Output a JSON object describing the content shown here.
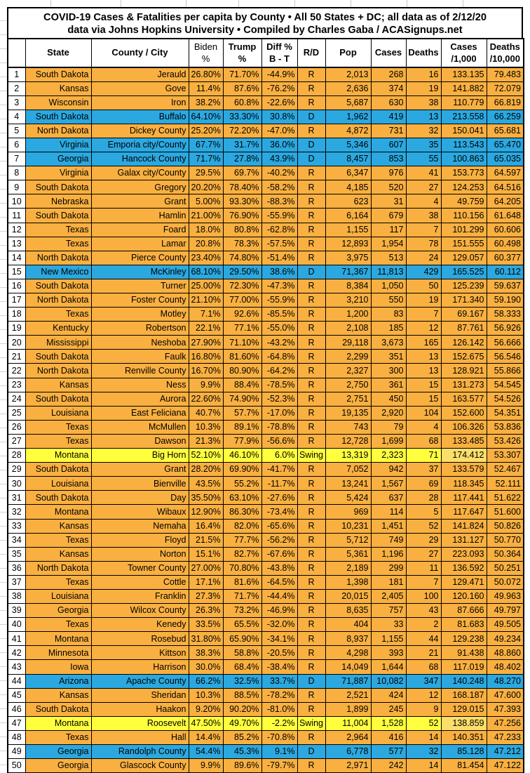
{
  "title": {
    "line1": "COVID-19 Cases & Fatalities per capita by County • All 50 States + DC; all data as of 2/12/20",
    "line2": "data via Johns Hopkins University • Compiled by Charles Gaba / ACASignups.net"
  },
  "colors": {
    "republican_row": "#F9B041",
    "democrat_row": "#2BA8E0",
    "swing_row": "#FFFF3D",
    "swing_cases_cell": "#FCDE6A",
    "border": "#000000",
    "text": "#000000"
  },
  "chart_data": {
    "type": "table",
    "title": "COVID-19 Cases & Fatalities per capita by County",
    "columns": [
      "",
      "State",
      "County / City",
      "Biden\n%",
      "Trump\n%",
      "Diff %\nB - T",
      "R/D",
      "Pop",
      "Cases",
      "Deaths",
      "Cases\n/1,000",
      "Deaths\n/10,000"
    ],
    "rows": [
      {
        "rank": "1",
        "state": "South Dakota",
        "county": "Jerauld",
        "biden": "26.80%",
        "trump": "71.70%",
        "diff": "-44.9%",
        "rd": "R",
        "pop": "2,013",
        "cases": "268",
        "deaths": "16",
        "cases_per_1000": "133.135",
        "deaths_per_10000": "79.483"
      },
      {
        "rank": "2",
        "state": "Kansas",
        "county": "Gove",
        "biden": "11.4%",
        "trump": "87.6%",
        "diff": "-76.2%",
        "rd": "R",
        "pop": "2,636",
        "cases": "374",
        "deaths": "19",
        "cases_per_1000": "141.882",
        "deaths_per_10000": "72.079"
      },
      {
        "rank": "3",
        "state": "Wisconsin",
        "county": "Iron",
        "biden": "38.2%",
        "trump": "60.8%",
        "diff": "-22.6%",
        "rd": "R",
        "pop": "5,687",
        "cases": "630",
        "deaths": "38",
        "cases_per_1000": "110.779",
        "deaths_per_10000": "66.819"
      },
      {
        "rank": "4",
        "state": "South Dakota",
        "county": "Buffalo",
        "biden": "64.10%",
        "trump": "33.30%",
        "diff": "30.8%",
        "rd": "D",
        "pop": "1,962",
        "cases": "419",
        "deaths": "13",
        "cases_per_1000": "213.558",
        "deaths_per_10000": "66.259"
      },
      {
        "rank": "5",
        "state": "North Dakota",
        "county": "Dickey County",
        "biden": "25.20%",
        "trump": "72.20%",
        "diff": "-47.0%",
        "rd": "R",
        "pop": "4,872",
        "cases": "731",
        "deaths": "32",
        "cases_per_1000": "150.041",
        "deaths_per_10000": "65.681"
      },
      {
        "rank": "6",
        "state": "Virginia",
        "county": "Emporia city/County",
        "biden": "67.7%",
        "trump": "31.7%",
        "diff": "36.0%",
        "rd": "D",
        "pop": "5,346",
        "cases": "607",
        "deaths": "35",
        "cases_per_1000": "113.543",
        "deaths_per_10000": "65.470"
      },
      {
        "rank": "7",
        "state": "Georgia",
        "county": "Hancock County",
        "biden": "71.7%",
        "trump": "27.8%",
        "diff": "43.9%",
        "rd": "D",
        "pop": "8,457",
        "cases": "853",
        "deaths": "55",
        "cases_per_1000": "100.863",
        "deaths_per_10000": "65.035"
      },
      {
        "rank": "8",
        "state": "Virginia",
        "county": "Galax city/County",
        "biden": "29.5%",
        "trump": "69.7%",
        "diff": "-40.2%",
        "rd": "R",
        "pop": "6,347",
        "cases": "976",
        "deaths": "41",
        "cases_per_1000": "153.773",
        "deaths_per_10000": "64.597"
      },
      {
        "rank": "9",
        "state": "South Dakota",
        "county": "Gregory",
        "biden": "20.20%",
        "trump": "78.40%",
        "diff": "-58.2%",
        "rd": "R",
        "pop": "4,185",
        "cases": "520",
        "deaths": "27",
        "cases_per_1000": "124.253",
        "deaths_per_10000": "64.516"
      },
      {
        "rank": "10",
        "state": "Nebraska",
        "county": "Grant",
        "biden": "5.00%",
        "trump": "93.30%",
        "diff": "-88.3%",
        "rd": "R",
        "pop": "623",
        "cases": "31",
        "deaths": "4",
        "cases_per_1000": "49.759",
        "deaths_per_10000": "64.205"
      },
      {
        "rank": "11",
        "state": "South Dakota",
        "county": "Hamlin",
        "biden": "21.00%",
        "trump": "76.90%",
        "diff": "-55.9%",
        "rd": "R",
        "pop": "6,164",
        "cases": "679",
        "deaths": "38",
        "cases_per_1000": "110.156",
        "deaths_per_10000": "61.648"
      },
      {
        "rank": "12",
        "state": "Texas",
        "county": "Foard",
        "biden": "18.0%",
        "trump": "80.8%",
        "diff": "-62.8%",
        "rd": "R",
        "pop": "1,155",
        "cases": "117",
        "deaths": "7",
        "cases_per_1000": "101.299",
        "deaths_per_10000": "60.606"
      },
      {
        "rank": "13",
        "state": "Texas",
        "county": "Lamar",
        "biden": "20.8%",
        "trump": "78.3%",
        "diff": "-57.5%",
        "rd": "R",
        "pop": "12,893",
        "cases": "1,954",
        "deaths": "78",
        "cases_per_1000": "151.555",
        "deaths_per_10000": "60.498"
      },
      {
        "rank": "14",
        "state": "North Dakota",
        "county": "Pierce County",
        "biden": "23.40%",
        "trump": "74.80%",
        "diff": "-51.4%",
        "rd": "R",
        "pop": "3,975",
        "cases": "513",
        "deaths": "24",
        "cases_per_1000": "129.057",
        "deaths_per_10000": "60.377"
      },
      {
        "rank": "15",
        "state": "New Mexico",
        "county": "McKinley",
        "biden": "68.10%",
        "trump": "29.50%",
        "diff": "38.6%",
        "rd": "D",
        "pop": "71,367",
        "cases": "11,813",
        "deaths": "429",
        "cases_per_1000": "165.525",
        "deaths_per_10000": "60.112"
      },
      {
        "rank": "16",
        "state": "South Dakota",
        "county": "Turner",
        "biden": "25.00%",
        "trump": "72.30%",
        "diff": "-47.3%",
        "rd": "R",
        "pop": "8,384",
        "cases": "1,050",
        "deaths": "50",
        "cases_per_1000": "125.239",
        "deaths_per_10000": "59.637"
      },
      {
        "rank": "17",
        "state": "North Dakota",
        "county": "Foster County",
        "biden": "21.10%",
        "trump": "77.00%",
        "diff": "-55.9%",
        "rd": "R",
        "pop": "3,210",
        "cases": "550",
        "deaths": "19",
        "cases_per_1000": "171.340",
        "deaths_per_10000": "59.190"
      },
      {
        "rank": "18",
        "state": "Texas",
        "county": "Motley",
        "biden": "7.1%",
        "trump": "92.6%",
        "diff": "-85.5%",
        "rd": "R",
        "pop": "1,200",
        "cases": "83",
        "deaths": "7",
        "cases_per_1000": "69.167",
        "deaths_per_10000": "58.333"
      },
      {
        "rank": "19",
        "state": "Kentucky",
        "county": "Robertson",
        "biden": "22.1%",
        "trump": "77.1%",
        "diff": "-55.0%",
        "rd": "R",
        "pop": "2,108",
        "cases": "185",
        "deaths": "12",
        "cases_per_1000": "87.761",
        "deaths_per_10000": "56.926"
      },
      {
        "rank": "20",
        "state": "Mississippi",
        "county": "Neshoba",
        "biden": "27.90%",
        "trump": "71.10%",
        "diff": "-43.2%",
        "rd": "R",
        "pop": "29,118",
        "cases": "3,673",
        "deaths": "165",
        "cases_per_1000": "126.142",
        "deaths_per_10000": "56.666"
      },
      {
        "rank": "21",
        "state": "South Dakota",
        "county": "Faulk",
        "biden": "16.80%",
        "trump": "81.60%",
        "diff": "-64.8%",
        "rd": "R",
        "pop": "2,299",
        "cases": "351",
        "deaths": "13",
        "cases_per_1000": "152.675",
        "deaths_per_10000": "56.546"
      },
      {
        "rank": "22",
        "state": "North Dakota",
        "county": "Renville County",
        "biden": "16.70%",
        "trump": "80.90%",
        "diff": "-64.2%",
        "rd": "R",
        "pop": "2,327",
        "cases": "300",
        "deaths": "13",
        "cases_per_1000": "128.921",
        "deaths_per_10000": "55.866"
      },
      {
        "rank": "23",
        "state": "Kansas",
        "county": "Ness",
        "biden": "9.9%",
        "trump": "88.4%",
        "diff": "-78.5%",
        "rd": "R",
        "pop": "2,750",
        "cases": "361",
        "deaths": "15",
        "cases_per_1000": "131.273",
        "deaths_per_10000": "54.545"
      },
      {
        "rank": "24",
        "state": "South Dakota",
        "county": "Aurora",
        "biden": "22.60%",
        "trump": "74.90%",
        "diff": "-52.3%",
        "rd": "R",
        "pop": "2,751",
        "cases": "450",
        "deaths": "15",
        "cases_per_1000": "163.577",
        "deaths_per_10000": "54.526"
      },
      {
        "rank": "25",
        "state": "Louisiana",
        "county": "East Feliciana",
        "biden": "40.7%",
        "trump": "57.7%",
        "diff": "-17.0%",
        "rd": "R",
        "pop": "19,135",
        "cases": "2,920",
        "deaths": "104",
        "cases_per_1000": "152.600",
        "deaths_per_10000": "54.351"
      },
      {
        "rank": "26",
        "state": "Texas",
        "county": "McMullen",
        "biden": "10.3%",
        "trump": "89.1%",
        "diff": "-78.8%",
        "rd": "R",
        "pop": "743",
        "cases": "79",
        "deaths": "4",
        "cases_per_1000": "106.326",
        "deaths_per_10000": "53.836"
      },
      {
        "rank": "27",
        "state": "Texas",
        "county": "Dawson",
        "biden": "21.3%",
        "trump": "77.9%",
        "diff": "-56.6%",
        "rd": "R",
        "pop": "12,728",
        "cases": "1,699",
        "deaths": "68",
        "cases_per_1000": "133.485",
        "deaths_per_10000": "53.426"
      },
      {
        "rank": "28",
        "state": "Montana",
        "county": "Big Horn",
        "biden": "52.10%",
        "trump": "46.10%",
        "diff": "6.0%",
        "rd": "Swing",
        "pop": "13,319",
        "cases": "2,323",
        "deaths": "71",
        "cases_per_1000": "174.412",
        "deaths_per_10000": "53.307"
      },
      {
        "rank": "29",
        "state": "South Dakota",
        "county": "Grant",
        "biden": "28.20%",
        "trump": "69.90%",
        "diff": "-41.7%",
        "rd": "R",
        "pop": "7,052",
        "cases": "942",
        "deaths": "37",
        "cases_per_1000": "133.579",
        "deaths_per_10000": "52.467"
      },
      {
        "rank": "30",
        "state": "Louisiana",
        "county": "Bienville",
        "biden": "43.5%",
        "trump": "55.2%",
        "diff": "-11.7%",
        "rd": "R",
        "pop": "13,241",
        "cases": "1,567",
        "deaths": "69",
        "cases_per_1000": "118.345",
        "deaths_per_10000": "52.111"
      },
      {
        "rank": "31",
        "state": "South Dakota",
        "county": "Day",
        "biden": "35.50%",
        "trump": "63.10%",
        "diff": "-27.6%",
        "rd": "R",
        "pop": "5,424",
        "cases": "637",
        "deaths": "28",
        "cases_per_1000": "117.441",
        "deaths_per_10000": "51.622"
      },
      {
        "rank": "32",
        "state": "Montana",
        "county": "Wibaux",
        "biden": "12.90%",
        "trump": "86.30%",
        "diff": "-73.4%",
        "rd": "R",
        "pop": "969",
        "cases": "114",
        "deaths": "5",
        "cases_per_1000": "117.647",
        "deaths_per_10000": "51.600"
      },
      {
        "rank": "33",
        "state": "Kansas",
        "county": "Nemaha",
        "biden": "16.4%",
        "trump": "82.0%",
        "diff": "-65.6%",
        "rd": "R",
        "pop": "10,231",
        "cases": "1,451",
        "deaths": "52",
        "cases_per_1000": "141.824",
        "deaths_per_10000": "50.826"
      },
      {
        "rank": "34",
        "state": "Texas",
        "county": "Floyd",
        "biden": "21.5%",
        "trump": "77.7%",
        "diff": "-56.2%",
        "rd": "R",
        "pop": "5,712",
        "cases": "749",
        "deaths": "29",
        "cases_per_1000": "131.127",
        "deaths_per_10000": "50.770"
      },
      {
        "rank": "35",
        "state": "Kansas",
        "county": "Norton",
        "biden": "15.1%",
        "trump": "82.7%",
        "diff": "-67.6%",
        "rd": "R",
        "pop": "5,361",
        "cases": "1,196",
        "deaths": "27",
        "cases_per_1000": "223.093",
        "deaths_per_10000": "50.364"
      },
      {
        "rank": "36",
        "state": "North Dakota",
        "county": "Towner County",
        "biden": "27.00%",
        "trump": "70.80%",
        "diff": "-43.8%",
        "rd": "R",
        "pop": "2,189",
        "cases": "299",
        "deaths": "11",
        "cases_per_1000": "136.592",
        "deaths_per_10000": "50.251"
      },
      {
        "rank": "37",
        "state": "Texas",
        "county": "Cottle",
        "biden": "17.1%",
        "trump": "81.6%",
        "diff": "-64.5%",
        "rd": "R",
        "pop": "1,398",
        "cases": "181",
        "deaths": "7",
        "cases_per_1000": "129.471",
        "deaths_per_10000": "50.072"
      },
      {
        "rank": "38",
        "state": "Louisiana",
        "county": "Franklin",
        "biden": "27.3%",
        "trump": "71.7%",
        "diff": "-44.4%",
        "rd": "R",
        "pop": "20,015",
        "cases": "2,405",
        "deaths": "100",
        "cases_per_1000": "120.160",
        "deaths_per_10000": "49.963"
      },
      {
        "rank": "39",
        "state": "Georgia",
        "county": "Wilcox County",
        "biden": "26.3%",
        "trump": "73.2%",
        "diff": "-46.9%",
        "rd": "R",
        "pop": "8,635",
        "cases": "757",
        "deaths": "43",
        "cases_per_1000": "87.666",
        "deaths_per_10000": "49.797"
      },
      {
        "rank": "40",
        "state": "Texas",
        "county": "Kenedy",
        "biden": "33.5%",
        "trump": "65.5%",
        "diff": "-32.0%",
        "rd": "R",
        "pop": "404",
        "cases": "33",
        "deaths": "2",
        "cases_per_1000": "81.683",
        "deaths_per_10000": "49.505"
      },
      {
        "rank": "41",
        "state": "Montana",
        "county": "Rosebud",
        "biden": "31.80%",
        "trump": "65.90%",
        "diff": "-34.1%",
        "rd": "R",
        "pop": "8,937",
        "cases": "1,155",
        "deaths": "44",
        "cases_per_1000": "129.238",
        "deaths_per_10000": "49.234"
      },
      {
        "rank": "42",
        "state": "Minnesota",
        "county": "Kittson",
        "biden": "38.3%",
        "trump": "58.8%",
        "diff": "-20.5%",
        "rd": "R",
        "pop": "4,298",
        "cases": "393",
        "deaths": "21",
        "cases_per_1000": "91.438",
        "deaths_per_10000": "48.860"
      },
      {
        "rank": "43",
        "state": "Iowa",
        "county": "Harrison",
        "biden": "30.0%",
        "trump": "68.4%",
        "diff": "-38.4%",
        "rd": "R",
        "pop": "14,049",
        "cases": "1,644",
        "deaths": "68",
        "cases_per_1000": "117.019",
        "deaths_per_10000": "48.402"
      },
      {
        "rank": "44",
        "state": "Arizona",
        "county": "Apache County",
        "biden": "66.2%",
        "trump": "32.5%",
        "diff": "33.7%",
        "rd": "D",
        "pop": "71,887",
        "cases": "10,082",
        "deaths": "347",
        "cases_per_1000": "140.248",
        "deaths_per_10000": "48.270"
      },
      {
        "rank": "45",
        "state": "Kansas",
        "county": "Sheridan",
        "biden": "10.3%",
        "trump": "88.5%",
        "diff": "-78.2%",
        "rd": "R",
        "pop": "2,521",
        "cases": "424",
        "deaths": "12",
        "cases_per_1000": "168.187",
        "deaths_per_10000": "47.600"
      },
      {
        "rank": "46",
        "state": "South Dakota",
        "county": "Haakon",
        "biden": "9.20%",
        "trump": "90.20%",
        "diff": "-81.0%",
        "rd": "R",
        "pop": "1,899",
        "cases": "245",
        "deaths": "9",
        "cases_per_1000": "129.015",
        "deaths_per_10000": "47.393"
      },
      {
        "rank": "47",
        "state": "Montana",
        "county": "Roosevelt",
        "biden": "47.50%",
        "trump": "49.70%",
        "diff": "-2.2%",
        "rd": "Swing",
        "pop": "11,004",
        "cases": "1,528",
        "deaths": "52",
        "cases_per_1000": "138.859",
        "deaths_per_10000": "47.256"
      },
      {
        "rank": "48",
        "state": "Texas",
        "county": "Hall",
        "biden": "14.4%",
        "trump": "85.2%",
        "diff": "-70.8%",
        "rd": "R",
        "pop": "2,964",
        "cases": "416",
        "deaths": "14",
        "cases_per_1000": "140.351",
        "deaths_per_10000": "47.233"
      },
      {
        "rank": "49",
        "state": "Georgia",
        "county": "Randolph County",
        "biden": "54.4%",
        "trump": "45.3%",
        "diff": "9.1%",
        "rd": "D",
        "pop": "6,778",
        "cases": "577",
        "deaths": "32",
        "cases_per_1000": "85.128",
        "deaths_per_10000": "47.212"
      },
      {
        "rank": "50",
        "state": "Georgia",
        "county": "Glascock County",
        "biden": "9.9%",
        "trump": "89.6%",
        "diff": "-79.7%",
        "rd": "R",
        "pop": "2,971",
        "cases": "242",
        "deaths": "14",
        "cases_per_1000": "81.454",
        "deaths_per_10000": "47.122"
      }
    ]
  }
}
